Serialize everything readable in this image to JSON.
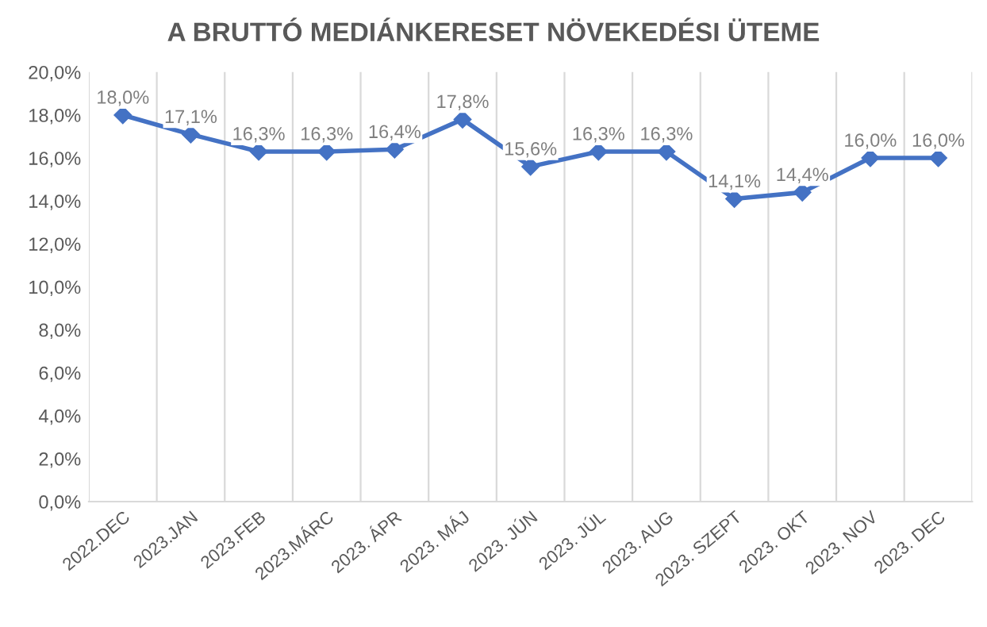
{
  "chart_data": {
    "type": "line",
    "title": "A BRUTTÓ MEDIÁNKERESET NÖVEKEDÉSI ÜTEME",
    "categories": [
      "2022.DEC",
      "2023.JAN",
      "2023.FEB",
      "2023.MÁRC",
      "2023. ÁPR",
      "2023. MÁJ",
      "2023. JÚN",
      "2023. JÚL",
      "2023. AUG",
      "2023. SZEPT",
      "2023. OKT",
      "2023. NOV",
      "2023. DEC"
    ],
    "series": [
      {
        "color": "#4472c4",
        "values": [
          18.0,
          17.1,
          16.3,
          16.3,
          16.4,
          17.8,
          15.6,
          16.3,
          16.3,
          14.1,
          14.4,
          16.0,
          16.0
        ],
        "value_labels": [
          "18,0%",
          "17,1%",
          "16,3%",
          "16,3%",
          "16,4%",
          "17,8%",
          "15,6%",
          "16,3%",
          "16,3%",
          "14,1%",
          "14,4%",
          "16,0%",
          "16,0%"
        ]
      }
    ],
    "ylim": [
      0,
      20
    ],
    "yticks": [
      {
        "value": 0,
        "label": "0,0%"
      },
      {
        "value": 2,
        "label": "2,0%"
      },
      {
        "value": 4,
        "label": "4,0%"
      },
      {
        "value": 6,
        "label": "6,0%"
      },
      {
        "value": 8,
        "label": "8,0%"
      },
      {
        "value": 10,
        "label": "10,0%"
      },
      {
        "value": 12,
        "label": "12,0%"
      },
      {
        "value": 14,
        "label": "14,0%"
      },
      {
        "value": 16,
        "label": "16,0%"
      },
      {
        "value": 18,
        "label": "18,0%"
      },
      {
        "value": 20,
        "label": "20,0%"
      }
    ],
    "grid": "x",
    "marker": "diamond",
    "line_style": "solid"
  }
}
